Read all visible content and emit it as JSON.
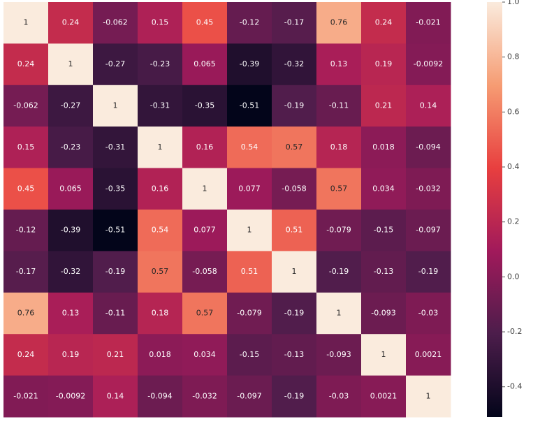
{
  "chart_data": {
    "type": "heatmap",
    "values": [
      [
        1,
        0.24,
        -0.062,
        0.15,
        0.45,
        -0.12,
        -0.17,
        0.76,
        0.24,
        -0.021
      ],
      [
        0.24,
        1,
        -0.27,
        -0.23,
        0.065,
        -0.39,
        -0.32,
        0.13,
        0.19,
        -0.0092
      ],
      [
        -0.062,
        -0.27,
        1,
        -0.31,
        -0.35,
        -0.51,
        -0.19,
        -0.11,
        0.21,
        0.14
      ],
      [
        0.15,
        -0.23,
        -0.31,
        1,
        0.16,
        0.54,
        0.57,
        0.18,
        0.018,
        -0.094
      ],
      [
        0.45,
        0.065,
        -0.35,
        0.16,
        1,
        0.077,
        -0.058,
        0.57,
        0.034,
        -0.032
      ],
      [
        -0.12,
        -0.39,
        -0.51,
        0.54,
        0.077,
        1,
        0.51,
        -0.079,
        -0.15,
        -0.097
      ],
      [
        -0.17,
        -0.32,
        -0.19,
        0.57,
        -0.058,
        0.51,
        1,
        -0.19,
        -0.13,
        -0.19
      ],
      [
        0.76,
        0.13,
        -0.11,
        0.18,
        0.57,
        -0.079,
        -0.19,
        1,
        -0.093,
        -0.03
      ],
      [
        0.24,
        0.19,
        0.21,
        0.018,
        0.034,
        -0.15,
        -0.13,
        -0.093,
        1,
        0.0021
      ],
      [
        -0.021,
        -0.0092,
        0.14,
        -0.094,
        -0.032,
        -0.097,
        -0.19,
        -0.03,
        0.0021,
        1
      ]
    ],
    "clim": [
      -0.51,
      1
    ],
    "cticks": [
      -0.4,
      -0.2,
      {
        "value": 0,
        "label": "0.0"
      },
      0.2,
      0.4,
      0.6,
      0.8,
      {
        "value": 1,
        "label": "1.0"
      }
    ],
    "cmap": [
      "#03051a",
      "#4c1d4b",
      "#a11a5b",
      "#e83f3f",
      "#f69c73",
      "#faebdd"
    ]
  }
}
